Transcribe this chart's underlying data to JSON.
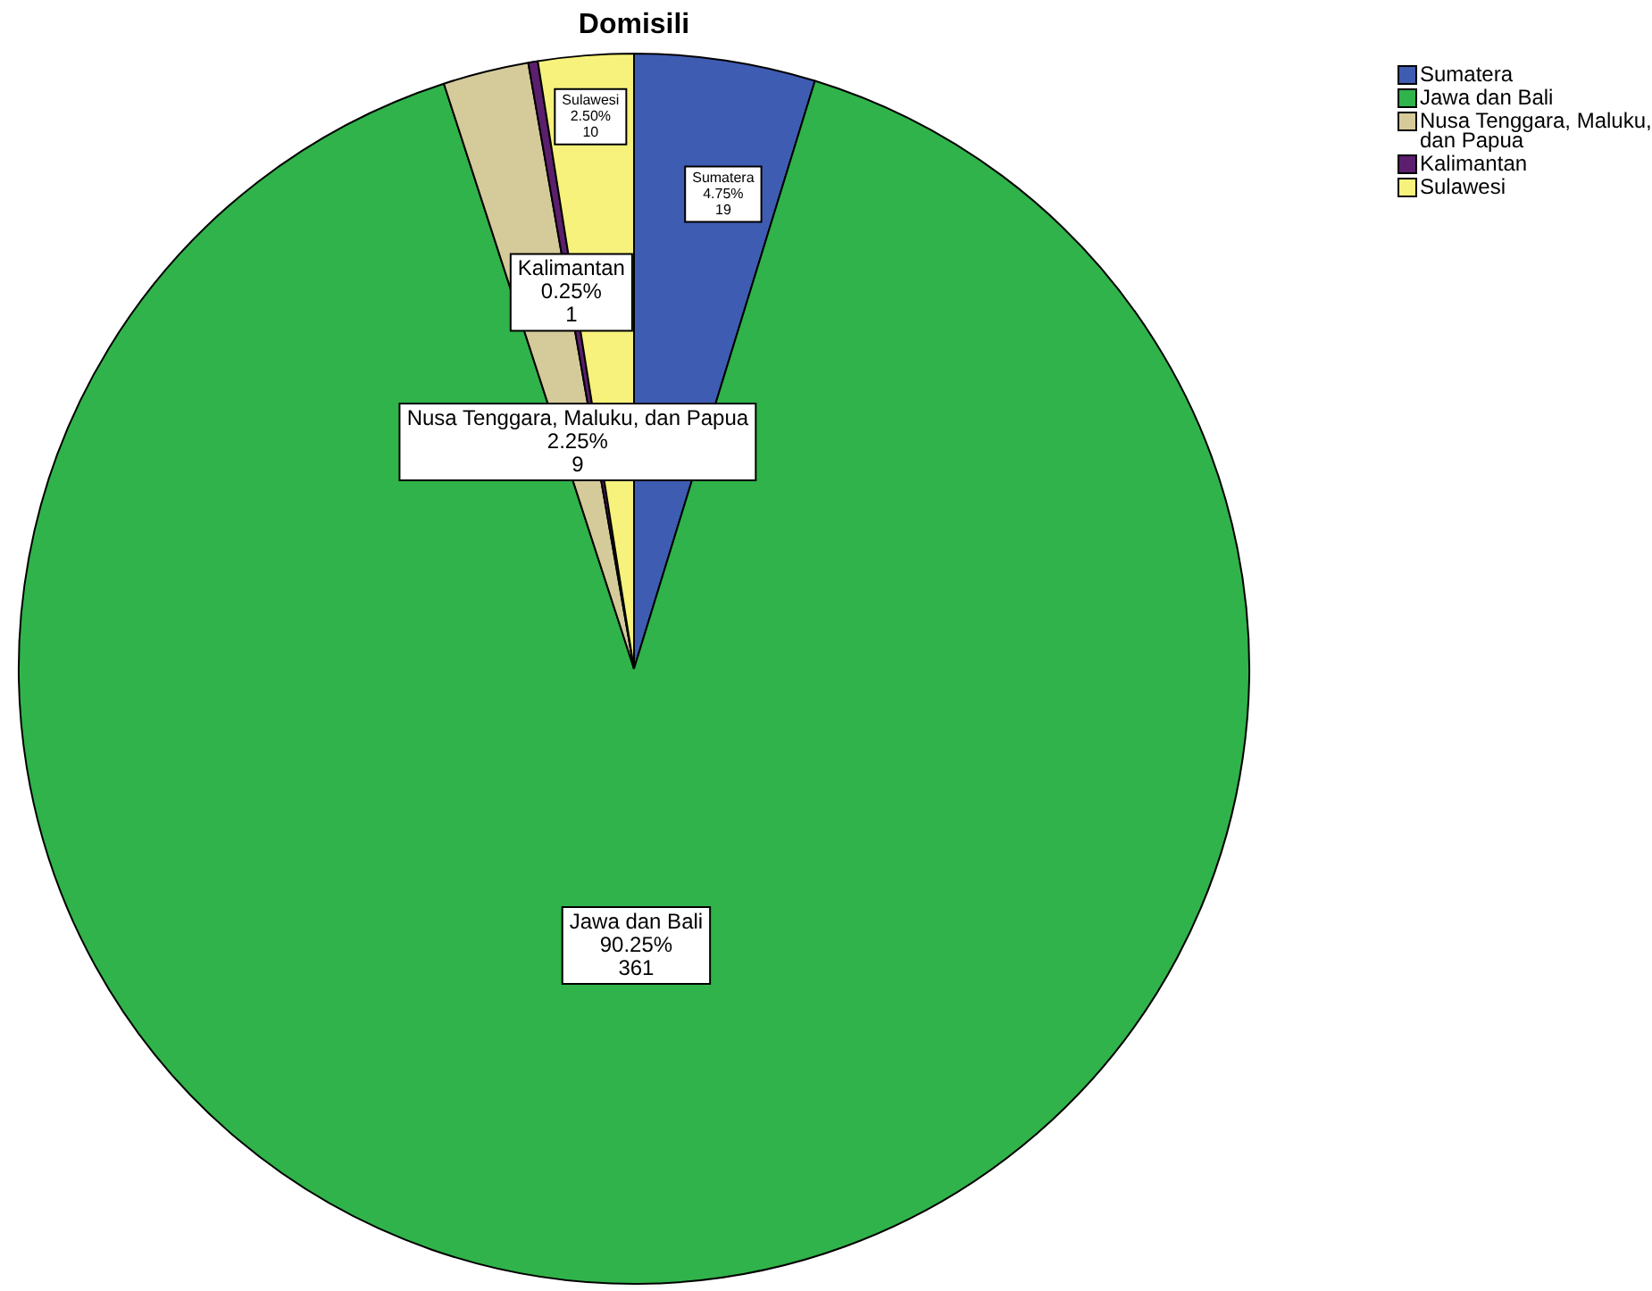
{
  "chart_data": {
    "type": "pie",
    "title": "Domisili",
    "categories": [
      "Sumatera",
      "Jawa dan Bali",
      "Nusa Tenggara, Maluku, dan Papua",
      "Kalimantan",
      "Sulawesi"
    ],
    "values": [
      4.75,
      90.25,
      2.25,
      0.25,
      2.5
    ],
    "value_labels": [
      "4.75%\n19",
      "90.25%\n361",
      "2.25%\n9",
      "0.25%\n1",
      "2.50%\n10"
    ],
    "colors": [
      "#3f5cb3",
      "#30b34a",
      "#d5cb9a",
      "#5b1f6d",
      "#f6f27c"
    ],
    "legend": "top right"
  }
}
